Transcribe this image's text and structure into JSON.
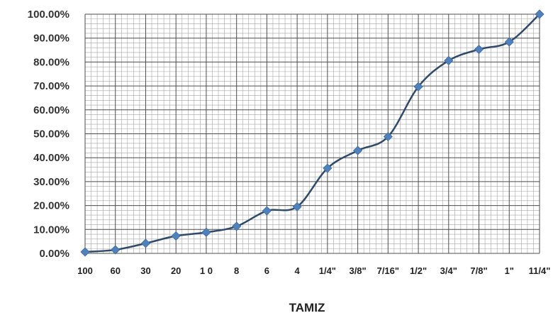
{
  "chart_data": {
    "type": "line",
    "title": "",
    "xlabel": "TAMIZ",
    "ylabel": "",
    "categories": [
      "100",
      "60",
      "30",
      "20",
      "1 0",
      "8",
      "6",
      "4",
      "1/4\"",
      "3/8\"",
      "7/16\"",
      "1/2\"",
      "3/4\"",
      "7/8\"",
      "1\"",
      "11/4\""
    ],
    "series": [
      {
        "values": [
          0.6,
          1.5,
          4.2,
          7.3,
          8.8,
          11.3,
          17.8,
          19.5,
          35.6,
          43.0,
          48.8,
          69.7,
          80.6,
          85.3,
          88.4,
          100.0
        ]
      }
    ],
    "ylim": [
      0,
      100
    ],
    "y_ticks": [
      "0.00%",
      "10.00%",
      "20.00%",
      "30.00%",
      "40.00%",
      "50.00%",
      "60.00%",
      "70.00%",
      "80.00%",
      "90.00%",
      "100.00%"
    ],
    "grid": true,
    "colors": {
      "line": "#2f4a6a",
      "marker": "#4f81bd",
      "major_grid": "#4d4d4d",
      "minor_grid": "#a6a6a6"
    }
  }
}
